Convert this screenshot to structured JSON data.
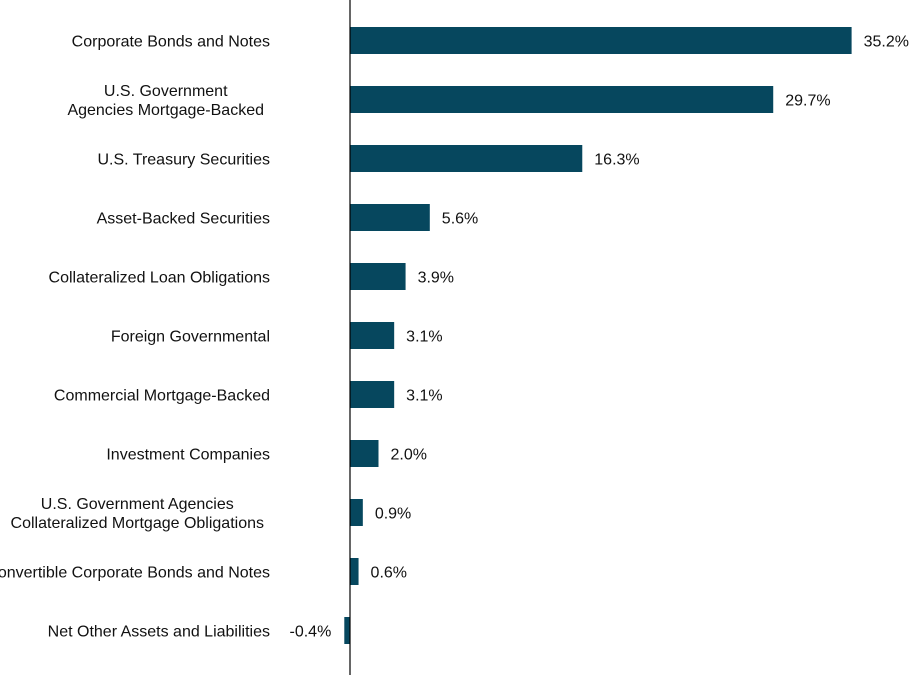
{
  "chart_data": {
    "type": "bar",
    "orientation": "horizontal",
    "title": "",
    "xlabel": "",
    "ylabel": "",
    "xlim": [
      -0.4,
      35.2
    ],
    "grid": false,
    "legend": "none",
    "bar_color": "#06475e",
    "categories": [
      [
        "Corporate Bonds and Notes"
      ],
      [
        "U.S. Government",
        "Agencies Mortgage-Backed"
      ],
      [
        "U.S. Treasury Securities"
      ],
      [
        "Asset-Backed Securities"
      ],
      [
        "Collateralized Loan Obligations"
      ],
      [
        "Foreign Governmental"
      ],
      [
        "Commercial Mortgage-Backed"
      ],
      [
        "Investment Companies"
      ],
      [
        "U.S. Government Agencies",
        "Collateralized Mortgage Obligations"
      ],
      [
        "Convertible Corporate Bonds and Notes"
      ],
      [
        "Net Other Assets and Liabilities"
      ]
    ],
    "values": [
      35.2,
      29.7,
      16.3,
      5.6,
      3.9,
      3.1,
      3.1,
      2.0,
      0.9,
      0.6,
      -0.4
    ],
    "value_labels": [
      "35.2%",
      "29.7%",
      "16.3%",
      "5.6%",
      "3.9%",
      "3.1%",
      "3.1%",
      "2.0%",
      "0.9%",
      "0.6%",
      "-0.4%"
    ]
  }
}
